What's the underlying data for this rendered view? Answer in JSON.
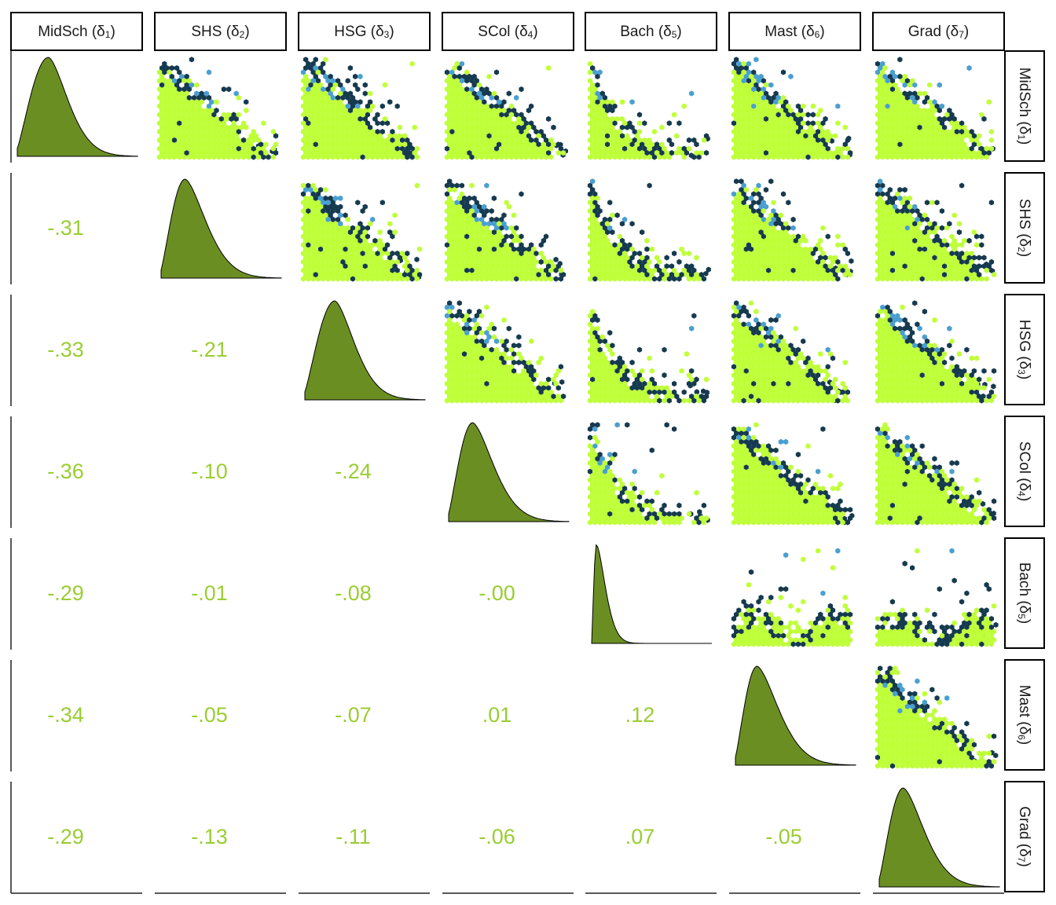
{
  "variables": [
    "MidSch",
    "SHS",
    "HSG",
    "SCol",
    "Bach",
    "Mast",
    "Grad"
  ],
  "subscripts": [
    "1",
    "2",
    "3",
    "4",
    "5",
    "6",
    "7"
  ],
  "symbol": "δ",
  "colors": {
    "density_fill": "#6b8e23",
    "correlation_text": "#9acd32",
    "hex_low": "#163a4f",
    "hex_mid": "#4a9fd0",
    "hex_high": "#bfff3a"
  },
  "chart_data": {
    "type": "scatterplot-matrix",
    "upper": "hexbin scatter",
    "diagonal": "density",
    "lower": "correlation",
    "correlations": [
      {
        "row": "SHS",
        "col": "MidSch",
        "label": "-.31"
      },
      {
        "row": "HSG",
        "col": "MidSch",
        "label": "-.33"
      },
      {
        "row": "HSG",
        "col": "SHS",
        "label": "-.21"
      },
      {
        "row": "SCol",
        "col": "MidSch",
        "label": "-.36"
      },
      {
        "row": "SCol",
        "col": "SHS",
        "label": "-.10"
      },
      {
        "row": "SCol",
        "col": "HSG",
        "label": "-.24"
      },
      {
        "row": "Bach",
        "col": "MidSch",
        "label": "-.29"
      },
      {
        "row": "Bach",
        "col": "SHS",
        "label": "-.01"
      },
      {
        "row": "Bach",
        "col": "HSG",
        "label": "-.08"
      },
      {
        "row": "Bach",
        "col": "SCol",
        "label": "-.00"
      },
      {
        "row": "Mast",
        "col": "MidSch",
        "label": "-.34"
      },
      {
        "row": "Mast",
        "col": "SHS",
        "label": "-.05"
      },
      {
        "row": "Mast",
        "col": "HSG",
        "label": "-.07"
      },
      {
        "row": "Mast",
        "col": "SCol",
        "label": ".01"
      },
      {
        "row": "Mast",
        "col": "Bach",
        "label": ".12"
      },
      {
        "row": "Grad",
        "col": "MidSch",
        "label": "-.29"
      },
      {
        "row": "Grad",
        "col": "SHS",
        "label": "-.13"
      },
      {
        "row": "Grad",
        "col": "HSG",
        "label": "-.11"
      },
      {
        "row": "Grad",
        "col": "SCol",
        "label": "-.06"
      },
      {
        "row": "Grad",
        "col": "Bach",
        "label": ".07"
      },
      {
        "row": "Grad",
        "col": "Mast",
        "label": "-.05"
      }
    ]
  }
}
